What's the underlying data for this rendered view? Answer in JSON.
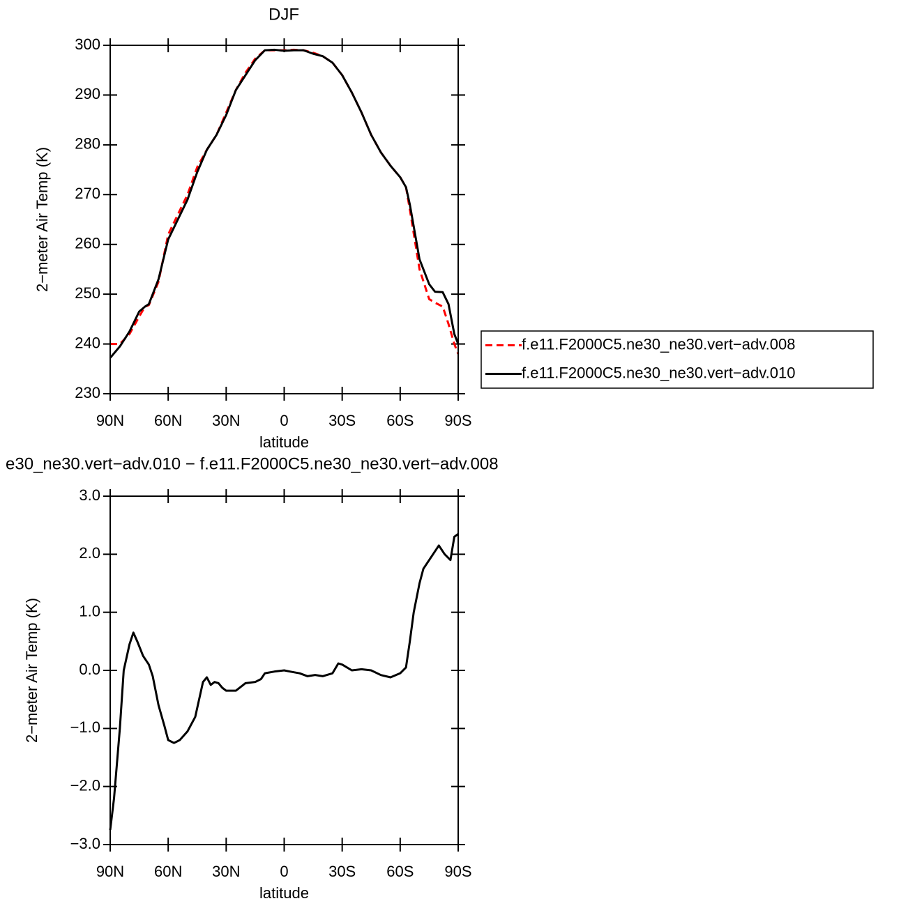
{
  "chart_data": [
    {
      "type": "line",
      "title": "DJF",
      "xlabel": "latitude",
      "ylabel": "2−meter Air Temp (K)",
      "x": [
        90,
        85,
        80,
        75,
        72,
        70,
        65,
        60,
        55,
        50,
        45,
        40,
        35,
        30,
        25,
        20,
        15,
        10,
        5,
        0,
        -5,
        -10,
        -15,
        -20,
        -25,
        -30,
        -35,
        -40,
        -45,
        -50,
        -55,
        -60,
        -63,
        -65,
        -70,
        -75,
        -78,
        -82,
        -85,
        -88,
        -90
      ],
      "xlim": [
        90,
        -90
      ],
      "xticks": [
        {
          "value": 90,
          "label": "90N"
        },
        {
          "value": 60,
          "label": "60N"
        },
        {
          "value": 30,
          "label": "30N"
        },
        0,
        {
          "value": -30,
          "label": "30S"
        },
        {
          "value": -60,
          "label": "60S"
        },
        {
          "value": -90,
          "label": "90S"
        }
      ],
      "ylim": [
        230,
        300
      ],
      "yticks": [
        230,
        240,
        250,
        260,
        270,
        280,
        290,
        300
      ],
      "legend": "right",
      "series": [
        {
          "name": "f.e11.F2000C5.ne30_ne30.vert−adv.008",
          "color": "#ff0000",
          "linestyle": "dashed",
          "values": [
            240,
            240,
            242,
            245.5,
            247.5,
            247.8,
            252.5,
            262,
            266,
            270,
            275.5,
            279,
            282,
            286.5,
            291,
            294.5,
            297.3,
            299,
            299,
            299,
            299.1,
            299,
            298.5,
            297.8,
            296.5,
            294,
            290.5,
            286.5,
            282,
            278.5,
            275.8,
            273.5,
            271.5,
            267,
            255,
            249,
            248.3,
            247.5,
            244,
            240,
            238
          ]
        },
        {
          "name": "f.e11.F2000C5.ne30_ne30.vert−adv.010",
          "color": "#000000",
          "linestyle": "solid",
          "values": [
            237.2,
            239.5,
            242.5,
            246.5,
            247.5,
            248,
            253,
            261,
            265,
            269,
            274.5,
            279,
            282,
            286,
            291,
            294,
            297,
            299,
            299.1,
            298.9,
            299,
            299,
            298.3,
            297.8,
            296.5,
            294,
            290.5,
            286.5,
            282,
            278.5,
            275.8,
            273.5,
            271.5,
            268,
            257,
            252,
            250.5,
            250.4,
            248,
            242,
            240
          ]
        }
      ]
    },
    {
      "type": "line",
      "title": "e30_ne30.vert−adv.010 − f.e11.F2000C5.ne30_ne30.vert−adv.008",
      "xlabel": "latitude",
      "ylabel": "2−meter Air Temp (K)",
      "x": [
        90,
        88,
        85,
        83,
        82,
        80,
        78,
        76,
        73,
        70,
        68,
        65,
        62,
        60,
        57,
        54,
        50,
        46,
        42,
        40,
        38,
        36,
        34,
        32,
        30,
        25,
        20,
        15,
        12,
        10,
        5,
        0,
        -3,
        -8,
        -12,
        -16,
        -20,
        -25,
        -28,
        -30,
        -35,
        -40,
        -45,
        -50,
        -55,
        -60,
        -63,
        -65,
        -67,
        -70,
        -72,
        -75,
        -80,
        -83,
        -86,
        -88,
        -90
      ],
      "xlim": [
        90,
        -90
      ],
      "xticks": [
        {
          "value": 90,
          "label": "90N"
        },
        {
          "value": 60,
          "label": "60N"
        },
        {
          "value": 30,
          "label": "30N"
        },
        0,
        {
          "value": -30,
          "label": "30S"
        },
        {
          "value": -60,
          "label": "60S"
        },
        {
          "value": -90,
          "label": "90S"
        }
      ],
      "ylim": [
        -3,
        3
      ],
      "yticks": [
        {
          "value": -3,
          "label": "−3.0"
        },
        {
          "value": -2,
          "label": "−2.0"
        },
        {
          "value": -1,
          "label": "−1.0"
        },
        {
          "value": 0,
          "label": "0.0"
        },
        {
          "value": 1,
          "label": "1.0"
        },
        {
          "value": 2,
          "label": "2.0"
        },
        {
          "value": 3,
          "label": "3.0"
        }
      ],
      "series": [
        {
          "color": "#000000",
          "linestyle": "solid",
          "values": [
            -2.75,
            -2.2,
            -1,
            0,
            0.15,
            0.45,
            0.65,
            0.5,
            0.25,
            0.1,
            -0.1,
            -0.6,
            -0.95,
            -1.2,
            -1.25,
            -1.2,
            -1.05,
            -0.8,
            -0.2,
            -0.12,
            -0.25,
            -0.2,
            -0.22,
            -0.3,
            -0.35,
            -0.35,
            -0.22,
            -0.2,
            -0.15,
            -0.05,
            -0.02,
            0,
            -0.02,
            -0.05,
            -0.1,
            -0.08,
            -0.1,
            -0.05,
            0.12,
            0.1,
            0,
            0.02,
            0,
            -0.08,
            -0.12,
            -0.05,
            0.05,
            0.5,
            1.0,
            1.5,
            1.75,
            1.9,
            2.15,
            2,
            1.9,
            2.3,
            2.35
          ]
        }
      ]
    }
  ]
}
